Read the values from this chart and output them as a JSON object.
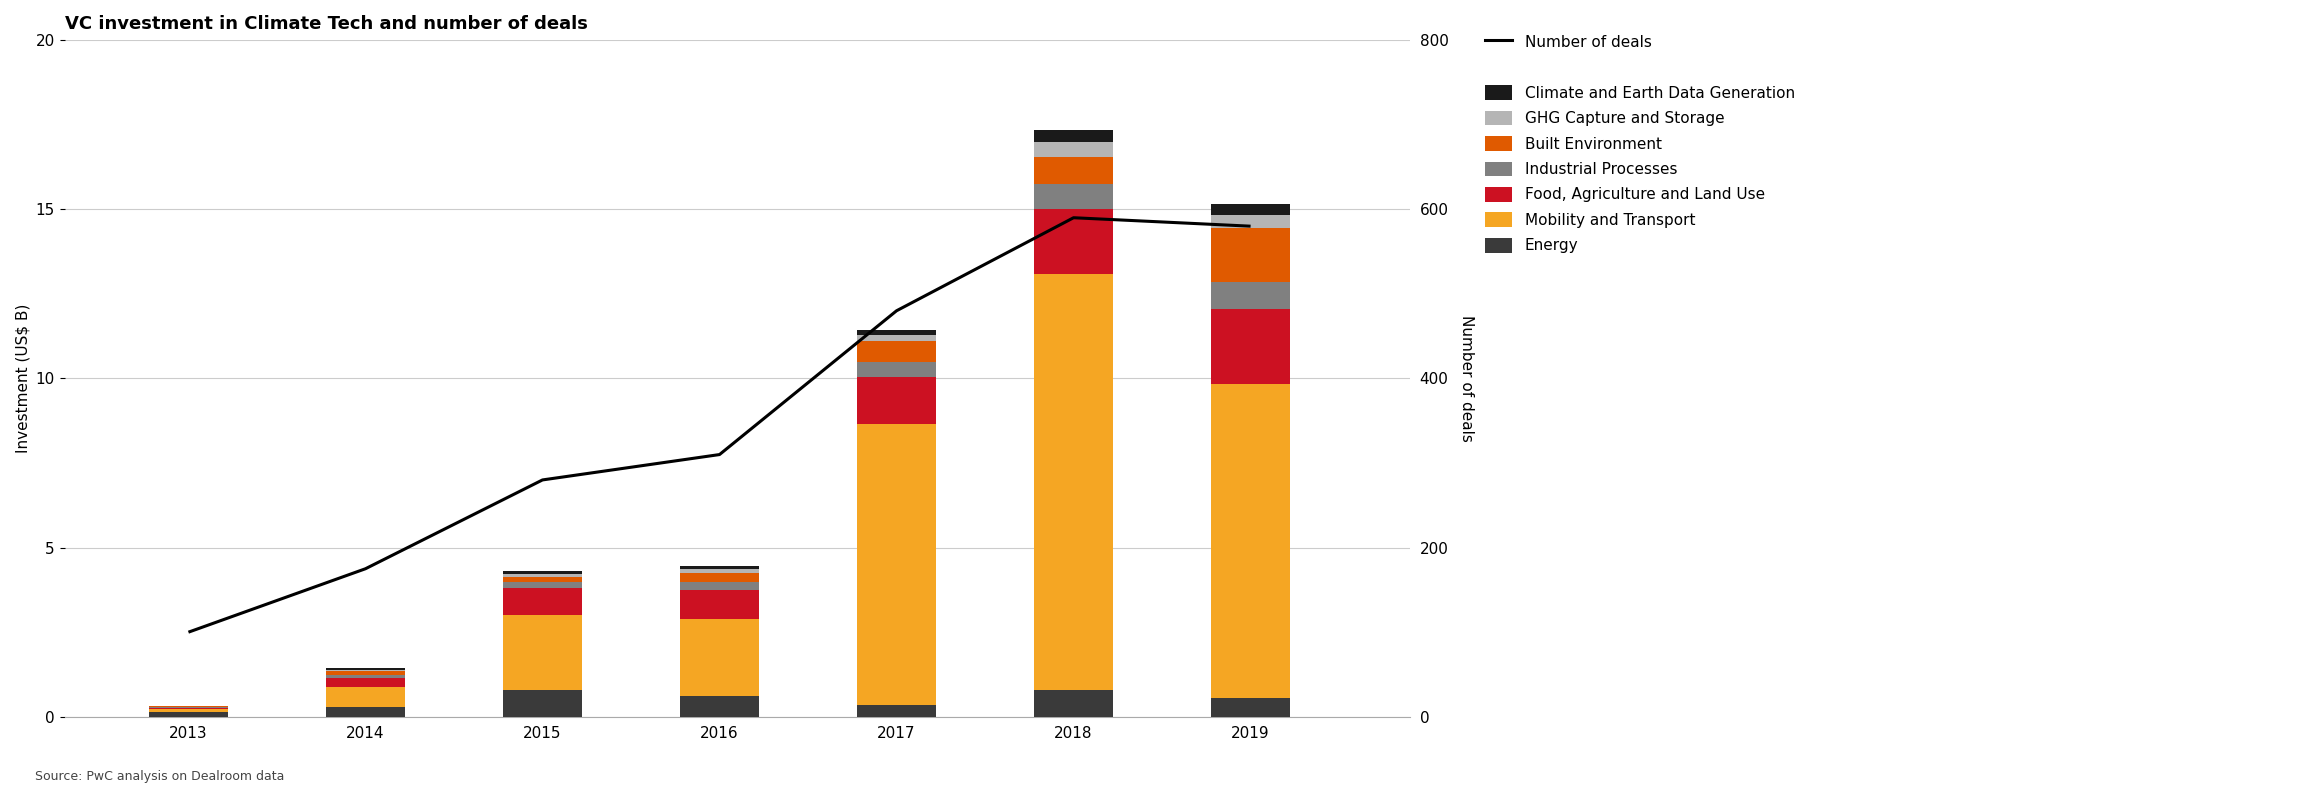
{
  "title": "VC investment in Climate Tech and number of deals",
  "years": [
    2013,
    2014,
    2015,
    2016,
    2017,
    2018,
    2019
  ],
  "ylabel_left": "Investment (US$ B)",
  "ylabel_right": "Number of deals",
  "source": "Source: PwC analysis on Dealroom data",
  "ylim_left": [
    0,
    20
  ],
  "ylim_right": [
    0,
    800
  ],
  "yticks_left": [
    0,
    5,
    10,
    15,
    20
  ],
  "yticks_right": [
    0,
    200,
    400,
    600,
    800
  ],
  "bar_width": 0.45,
  "categories": [
    "Energy",
    "Mobility and Transport",
    "Food, Agriculture and Land Use",
    "Industrial Processes",
    "Built Environment",
    "GHG Capture and Storage",
    "Climate and Earth Data Generation"
  ],
  "colors": [
    "#3a3a3a",
    "#f5a623",
    "#cc1122",
    "#808080",
    "#e05a00",
    "#b5b5b5",
    "#1a1a1a"
  ],
  "bar_data": {
    "Energy": [
      0.15,
      0.28,
      0.8,
      0.6,
      0.35,
      0.8,
      0.55
    ],
    "Mobility and Transport": [
      0.08,
      0.6,
      2.2,
      2.3,
      8.3,
      12.3,
      9.3
    ],
    "Food, Agriculture and Land Use": [
      0.04,
      0.28,
      0.8,
      0.85,
      1.4,
      1.9,
      2.2
    ],
    "Industrial Processes": [
      0.02,
      0.08,
      0.18,
      0.22,
      0.45,
      0.75,
      0.8
    ],
    "Built Environment": [
      0.02,
      0.1,
      0.15,
      0.28,
      0.6,
      0.8,
      1.6
    ],
    "GHG Capture and Storage": [
      0.01,
      0.05,
      0.1,
      0.12,
      0.18,
      0.45,
      0.38
    ],
    "Climate and Earth Data Generation": [
      0.01,
      0.04,
      0.08,
      0.09,
      0.15,
      0.35,
      0.32
    ]
  },
  "line_data": [
    100,
    175,
    280,
    310,
    480,
    590,
    580
  ],
  "line_color": "#000000",
  "line_width": 2.2,
  "background_color": "#ffffff",
  "grid_color": "#cccccc",
  "title_fontsize": 13,
  "axis_fontsize": 11,
  "tick_fontsize": 11,
  "legend_fontsize": 11,
  "legend_categories_order": [
    "Climate and Earth Data Generation",
    "GHG Capture and Storage",
    "Built Environment",
    "Industrial Processes",
    "Food, Agriculture and Land Use",
    "Mobility and Transport",
    "Energy"
  ],
  "legend_colors_order": [
    "#1a1a1a",
    "#b5b5b5",
    "#e05a00",
    "#808080",
    "#cc1122",
    "#f5a623",
    "#3a3a3a"
  ]
}
